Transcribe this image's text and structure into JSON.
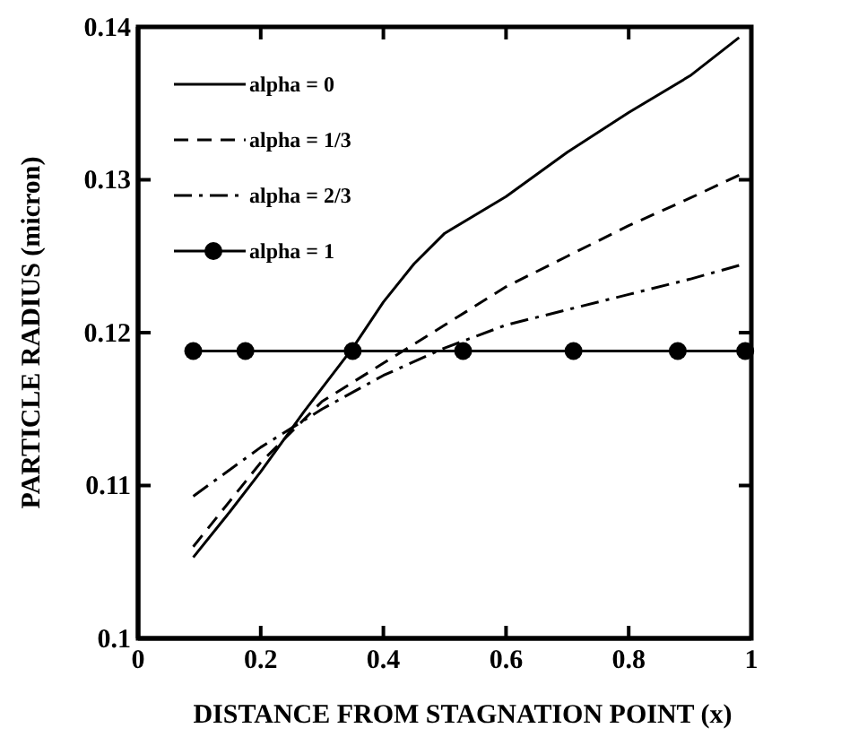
{
  "chart_data": {
    "type": "line",
    "xlabel": "DISTANCE FROM STAGNATION POINT (x)",
    "ylabel": "PARTICLE RADIUS (micron)",
    "xlim": [
      0,
      1
    ],
    "xticks": [
      0,
      0.2,
      0.4,
      0.6,
      0.8,
      1
    ],
    "ylim": [
      0.1,
      0.14
    ],
    "yticks": [
      0.1,
      0.11,
      0.12,
      0.13,
      0.14
    ],
    "grid": false,
    "legend": "top left",
    "series": [
      {
        "name": "alpha = 0",
        "color": "#000000",
        "line_style": "solid",
        "marker": "none",
        "x": [
          0.09,
          0.15,
          0.2,
          0.27,
          0.35,
          0.4,
          0.45,
          0.5,
          0.6,
          0.7,
          0.8,
          0.9,
          0.98
        ],
        "values": [
          0.1053,
          0.1083,
          0.1109,
          0.1148,
          0.119,
          0.122,
          0.1245,
          0.1265,
          0.1289,
          0.1318,
          0.1344,
          0.1368,
          0.1393
        ]
      },
      {
        "name": "alpha = 1/3",
        "color": "#000000",
        "line_style": "dashed",
        "marker": "none",
        "x": [
          0.09,
          0.2,
          0.3,
          0.4,
          0.5,
          0.6,
          0.7,
          0.8,
          0.9,
          0.98
        ],
        "values": [
          0.106,
          0.1115,
          0.1155,
          0.118,
          0.1205,
          0.123,
          0.125,
          0.127,
          0.1288,
          0.1303
        ]
      },
      {
        "name": "alpha = 2/3",
        "color": "#000000",
        "line_style": "dashdot",
        "marker": "none",
        "x": [
          0.09,
          0.2,
          0.3,
          0.4,
          0.5,
          0.6,
          0.7,
          0.8,
          0.9,
          0.98
        ],
        "values": [
          0.1093,
          0.1125,
          0.115,
          0.1172,
          0.119,
          0.1205,
          0.1215,
          0.1225,
          0.1235,
          0.1244
        ]
      },
      {
        "name": "alpha = 1",
        "color": "#000000",
        "line_style": "solid",
        "marker": "circle",
        "x": [
          0.09,
          0.175,
          0.35,
          0.53,
          0.71,
          0.88,
          0.99
        ],
        "values": [
          0.1188,
          0.1188,
          0.1188,
          0.1188,
          0.1188,
          0.1188,
          0.1188
        ]
      }
    ]
  }
}
